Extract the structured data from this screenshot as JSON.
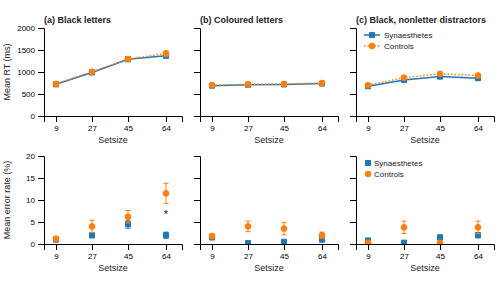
{
  "chart_data": [
    {
      "type": "line",
      "title": "(a) Black letters",
      "xlabel": "Setsize",
      "ylabel": "Mean RT (ms)",
      "x": [
        9,
        27,
        45,
        64
      ],
      "xlim": [
        3,
        72
      ],
      "ylim": [
        0,
        2000
      ],
      "xticks": [
        9,
        27,
        45,
        64
      ],
      "yticks": [
        0,
        500,
        1000,
        1500,
        2000
      ],
      "series": [
        {
          "values": [
            720,
            990,
            1290,
            1370
          ],
          "errors": [
            28,
            38,
            48,
            52
          ],
          "marker": "square",
          "line_style": "solid"
        },
        {
          "values": [
            730,
            1005,
            1295,
            1420
          ],
          "errors": [
            32,
            42,
            52,
            62
          ],
          "marker": "circle",
          "line_style": "dotted"
        }
      ]
    },
    {
      "type": "line",
      "title": "(b) Coloured letters",
      "xlabel": "Setsize",
      "x": [
        9,
        27,
        45,
        64
      ],
      "xlim": [
        3,
        72
      ],
      "ylim": [
        0,
        2000
      ],
      "xticks": [
        9,
        27,
        45,
        64
      ],
      "yticks": [
        0,
        500,
        1000,
        1500,
        2000
      ],
      "tick_labels": "x",
      "series": [
        {
          "values": [
            690,
            710,
            718,
            738
          ],
          "errors": [
            18,
            18,
            18,
            22
          ],
          "marker": "square",
          "line_style": "solid"
        },
        {
          "values": [
            700,
            718,
            728,
            748
          ],
          "errors": [
            22,
            20,
            20,
            25
          ],
          "marker": "circle",
          "line_style": "dotted"
        }
      ]
    },
    {
      "type": "line",
      "title": "(c) Black, nonletter distractors",
      "xlabel": "Setsize",
      "x": [
        9,
        27,
        45,
        64
      ],
      "xlim": [
        3,
        72
      ],
      "ylim": [
        0,
        2000
      ],
      "xticks": [
        9,
        27,
        45,
        64
      ],
      "yticks": [
        0,
        500,
        1000,
        1500,
        2000
      ],
      "tick_labels": "x",
      "legend": "upper left",
      "series": [
        {
          "name": "Synaesthetes",
          "values": [
            675,
            820,
            895,
            860
          ],
          "errors": [
            22,
            32,
            38,
            38
          ],
          "marker": "square",
          "line_style": "solid"
        },
        {
          "name": "Controls",
          "values": [
            698,
            870,
            960,
            920
          ],
          "errors": [
            28,
            38,
            42,
            42
          ],
          "marker": "circle",
          "line_style": "dotted"
        }
      ]
    },
    {
      "type": "scatter",
      "xlabel": "Setsize",
      "ylabel": "Mean error rate (%)",
      "x": [
        9,
        27,
        45,
        64
      ],
      "xlim": [
        3,
        72
      ],
      "ylim": [
        0,
        20
      ],
      "xticks": [
        9,
        27,
        45,
        64
      ],
      "yticks": [
        0,
        5,
        10,
        15,
        20
      ],
      "annotations": [
        {
          "text": "*",
          "x": 64,
          "y": 5.8
        }
      ],
      "series": [
        {
          "values": [
            1.0,
            2.0,
            4.5,
            2.0
          ],
          "errors": [
            0.4,
            0.6,
            0.9,
            0.7
          ],
          "marker": "square"
        },
        {
          "values": [
            1.2,
            4.0,
            6.2,
            11.5
          ],
          "errors": [
            0.5,
            1.4,
            1.4,
            2.3
          ],
          "marker": "circle"
        }
      ]
    },
    {
      "type": "scatter",
      "xlabel": "Setsize",
      "x": [
        9,
        27,
        45,
        64
      ],
      "xlim": [
        3,
        72
      ],
      "ylim": [
        0,
        20
      ],
      "xticks": [
        9,
        27,
        45,
        64
      ],
      "yticks": [
        0,
        5,
        10,
        15,
        20
      ],
      "tick_labels": "x",
      "series": [
        {
          "values": [
            1.5,
            0.2,
            0.5,
            1.0
          ],
          "errors": [
            0.5,
            0.2,
            0.3,
            0.5
          ],
          "marker": "square"
        },
        {
          "values": [
            1.8,
            4.0,
            3.5,
            2.0
          ],
          "errors": [
            0.6,
            1.2,
            1.4,
            0.7
          ],
          "marker": "circle"
        }
      ]
    },
    {
      "type": "scatter",
      "xlabel": "Setsize",
      "x": [
        9,
        27,
        45,
        64
      ],
      "xlim": [
        3,
        72
      ],
      "ylim": [
        0,
        20
      ],
      "xticks": [
        9,
        27,
        45,
        64
      ],
      "yticks": [
        0,
        5,
        10,
        15,
        20
      ],
      "tick_labels": "x",
      "legend": "upper left",
      "series": [
        {
          "name": "Synaesthetes",
          "values": [
            0.8,
            0.3,
            1.5,
            2.0
          ],
          "errors": [
            0.3,
            0.2,
            0.5,
            0.6
          ],
          "marker": "square"
        },
        {
          "name": "Controls",
          "values": [
            0.3,
            3.8,
            0.3,
            3.8
          ],
          "errors": [
            0.2,
            1.4,
            0.2,
            1.4
          ],
          "marker": "circle"
        }
      ]
    }
  ]
}
